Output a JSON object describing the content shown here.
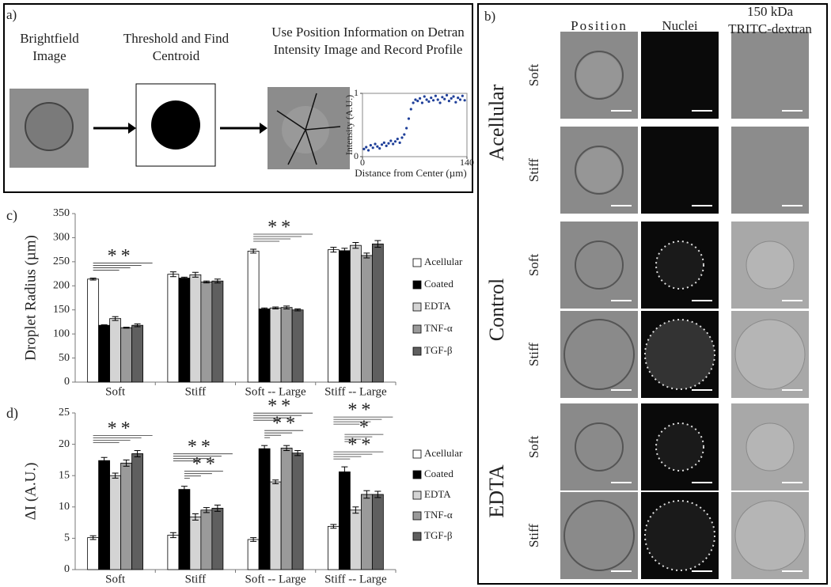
{
  "panel_a": {
    "label": "a)",
    "steps": [
      "Brightfield Image",
      "Threshold and Find Centroid",
      "Use Position Information on Detran Intensity Image and Record Profile"
    ]
  },
  "panel_b": {
    "label": "b)",
    "columns": [
      "Position",
      "Nuclei",
      "150 kDa TRITC-dextran"
    ],
    "groups": [
      {
        "name": "Acellular",
        "rows": [
          "Soft",
          "Stiff"
        ]
      },
      {
        "name": "Control",
        "rows": [
          "Soft",
          "Stiff"
        ]
      },
      {
        "name": "EDTA",
        "rows": [
          "Soft",
          "Stiff"
        ]
      }
    ]
  },
  "chart_data": [
    {
      "type": "scatter",
      "xlabel": "Distance from Center (µm)",
      "ylabel": "Intensity (A.U.)",
      "color": "#1f3f99",
      "xlim": [
        0,
        140
      ],
      "ylim": [
        0,
        1
      ],
      "xticks": [
        0,
        140
      ],
      "yticks": [
        0,
        1
      ],
      "x": [
        2,
        5,
        8,
        11,
        14,
        17,
        20,
        23,
        26,
        29,
        32,
        35,
        38,
        41,
        44,
        47,
        50,
        53,
        56,
        59,
        62,
        65,
        68,
        71,
        74,
        77,
        80,
        83,
        86,
        89,
        92,
        95,
        98,
        101,
        104,
        107,
        110,
        113,
        116,
        119,
        122,
        125,
        128,
        131,
        134,
        137
      ],
      "values": [
        0.12,
        0.15,
        0.1,
        0.18,
        0.14,
        0.2,
        0.16,
        0.13,
        0.19,
        0.22,
        0.17,
        0.21,
        0.25,
        0.2,
        0.24,
        0.28,
        0.22,
        0.3,
        0.35,
        0.45,
        0.6,
        0.75,
        0.85,
        0.9,
        0.88,
        0.92,
        0.85,
        0.95,
        0.9,
        0.87,
        0.93,
        0.89,
        0.96,
        0.9,
        0.85,
        0.94,
        0.91,
        0.97,
        0.88,
        0.92,
        0.95,
        0.86,
        0.93,
        0.9,
        0.96,
        0.89
      ]
    },
    {
      "type": "bar",
      "label": "c)",
      "ylabel": "Droplet Radius (µm)",
      "ylim": [
        0,
        350
      ],
      "yticks": [
        0,
        50,
        100,
        150,
        200,
        250,
        300,
        350
      ],
      "categories": [
        "Soft",
        "Stiff",
        "Soft -- Large",
        "Stiff -- Large"
      ],
      "series": [
        {
          "name": "Acellular",
          "color": "#ffffff",
          "values": [
            214,
            224,
            272,
            275
          ],
          "errors": [
            2,
            5,
            4,
            5
          ]
        },
        {
          "name": "Coated",
          "color": "#000000",
          "values": [
            118,
            216,
            152,
            273
          ],
          "errors": [
            1,
            2,
            2,
            5
          ]
        },
        {
          "name": "EDTA",
          "color": "#d4d4d4",
          "values": [
            132,
            223,
            154,
            284
          ],
          "errors": [
            4,
            5,
            2,
            6
          ]
        },
        {
          "name": "TNF-α",
          "color": "#9a9a9a",
          "values": [
            113,
            208,
            155,
            263
          ],
          "errors": [
            1,
            2,
            3,
            5
          ]
        },
        {
          "name": "TGF-β",
          "color": "#5f5f5f",
          "values": [
            118,
            210,
            150,
            287
          ],
          "errors": [
            3,
            4,
            2,
            7
          ]
        }
      ],
      "annotations": [
        [
          "**"
        ],
        [],
        [
          "**"
        ],
        []
      ]
    },
    {
      "type": "bar",
      "label": "d)",
      "ylabel": "ΔI (A.U.)",
      "ylim": [
        0,
        25
      ],
      "yticks": [
        0,
        5,
        10,
        15,
        20,
        25
      ],
      "categories": [
        "Soft",
        "Stiff",
        "Soft -- Large",
        "Stiff -- Large"
      ],
      "series": [
        {
          "name": "Acellular",
          "color": "#ffffff",
          "values": [
            5.1,
            5.5,
            4.8,
            6.9
          ],
          "errors": [
            0.3,
            0.4,
            0.3,
            0.3
          ]
        },
        {
          "name": "Coated",
          "color": "#000000",
          "values": [
            17.4,
            12.8,
            19.3,
            15.6
          ],
          "errors": [
            0.5,
            0.5,
            0.5,
            0.8
          ]
        },
        {
          "name": "EDTA",
          "color": "#d4d4d4",
          "values": [
            15.0,
            8.4,
            14.0,
            9.5
          ],
          "errors": [
            0.4,
            0.5,
            0.3,
            0.5
          ]
        },
        {
          "name": "TNF-α",
          "color": "#9a9a9a",
          "values": [
            17.0,
            9.5,
            19.4,
            12.0
          ],
          "errors": [
            0.5,
            0.4,
            0.4,
            0.6
          ]
        },
        {
          "name": "TGF-β",
          "color": "#5f5f5f",
          "values": [
            18.5,
            9.8,
            18.6,
            12.0
          ],
          "errors": [
            0.5,
            0.5,
            0.4,
            0.5
          ]
        }
      ],
      "annotations": [
        [
          "**"
        ],
        [
          "**",
          "**"
        ],
        [
          "**",
          "**"
        ],
        [
          "**",
          "*",
          "**"
        ]
      ]
    }
  ]
}
